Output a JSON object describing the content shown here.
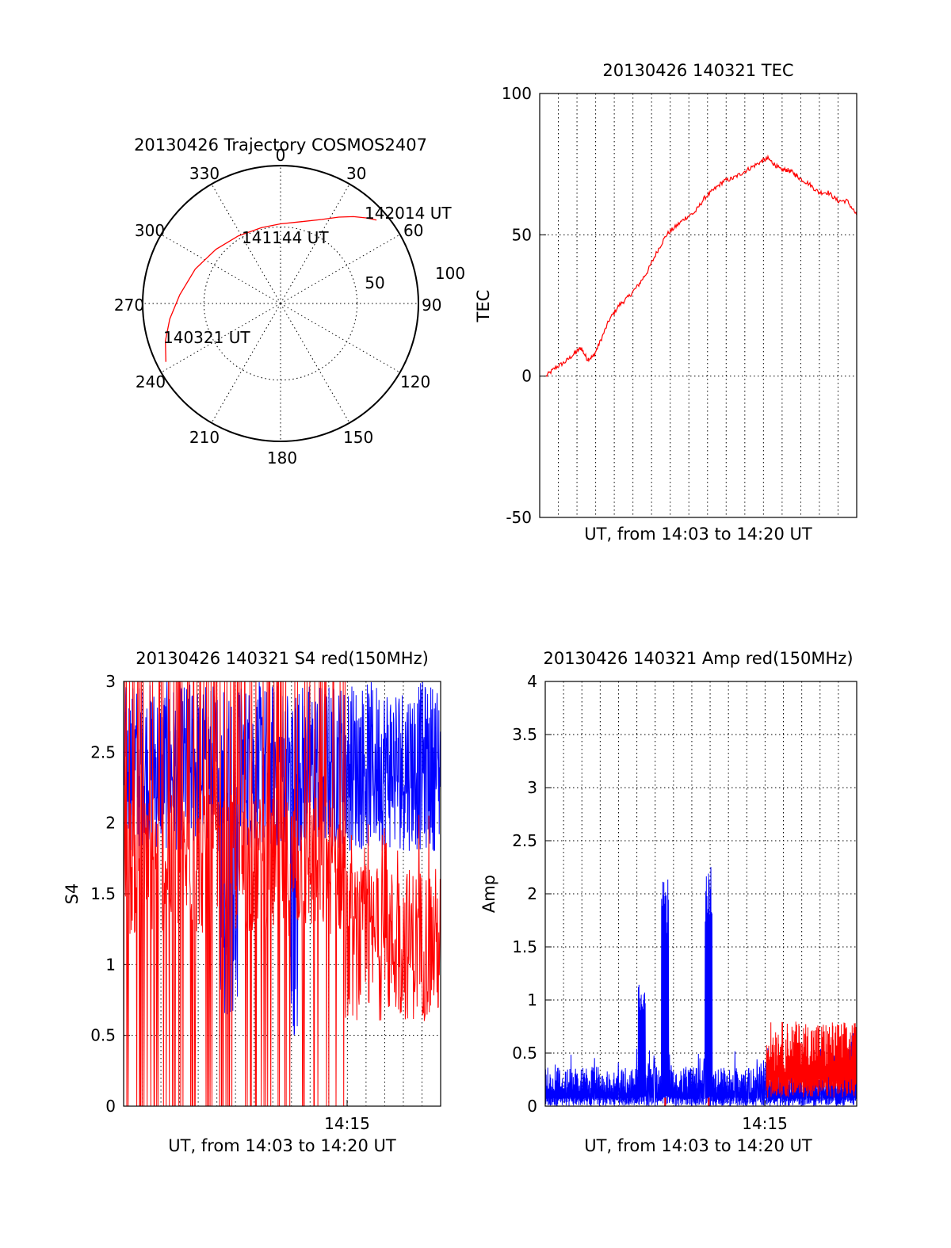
{
  "chart_data": [
    {
      "id": "trajectory",
      "type": "polar",
      "title": "20130426 Trajectory COSMOS2407",
      "azimuth_labels": [
        "0",
        "30",
        "60",
        "90",
        "120",
        "150",
        "180",
        "210",
        "240",
        "270",
        "300",
        "330"
      ],
      "radial_labels": [
        "50",
        "100"
      ],
      "grid": true,
      "series": [
        {
          "color": "#ff0000",
          "points": [
            {
              "az": 243,
              "el": 6
            },
            {
              "az": 252,
              "el": 11
            },
            {
              "az": 262,
              "el": 17
            },
            {
              "az": 275,
              "el": 24
            },
            {
              "az": 292,
              "el": 30
            },
            {
              "az": 310,
              "el": 35
            },
            {
              "az": 328,
              "el": 38
            },
            {
              "az": 346,
              "el": 39
            },
            {
              "az": 0,
              "el": 38
            },
            {
              "az": 14,
              "el": 35
            },
            {
              "az": 26,
              "el": 29
            },
            {
              "az": 34,
              "el": 22
            },
            {
              "az": 40,
              "el": 16
            },
            {
              "az": 45,
              "el": 11
            },
            {
              "az": 49,
              "el": 7
            }
          ]
        }
      ],
      "annotations": [
        {
          "text": "142014 UT",
          "az": 50,
          "el": 6
        },
        {
          "text": "141144 UT",
          "az": 15,
          "el": 52
        },
        {
          "text": "140321 UT",
          "az": 250,
          "el": 5
        }
      ]
    },
    {
      "id": "tec",
      "type": "line",
      "title": "20130426 140321 TEC",
      "xlabel": "UT, from 14:03 to 14:20 UT",
      "ylabel": "TEC",
      "xlim": [
        0,
        1
      ],
      "ylim": [
        -50,
        100
      ],
      "yticks": [
        "-50",
        "0",
        "50",
        "100"
      ],
      "grid": true,
      "series": [
        {
          "color": "#ff0000",
          "x": [
            0.02,
            0.05,
            0.08,
            0.11,
            0.13,
            0.15,
            0.17,
            0.19,
            0.22,
            0.25,
            0.28,
            0.31,
            0.34,
            0.37,
            0.4,
            0.43,
            0.46,
            0.49,
            0.52,
            0.55,
            0.58,
            0.61,
            0.64,
            0.67,
            0.7,
            0.72,
            0.74,
            0.76,
            0.78,
            0.8,
            0.82,
            0.85,
            0.88,
            0.91,
            0.94,
            0.97,
            1.0
          ],
          "values": [
            0,
            3,
            5,
            8,
            10,
            6,
            7,
            12,
            20,
            25,
            28,
            32,
            37,
            44,
            50,
            53,
            56,
            58,
            63,
            66,
            69,
            70,
            72,
            74,
            76,
            77,
            75,
            73,
            73,
            72,
            70,
            68,
            65,
            65,
            62,
            62,
            57
          ]
        }
      ]
    },
    {
      "id": "s4",
      "type": "line",
      "title": "20130426 140321 S4 red(150MHz)",
      "xlabel": "UT, from 14:03 to 14:20 UT",
      "ylabel": "S4",
      "xlim": [
        0,
        1
      ],
      "ylim": [
        0,
        3
      ],
      "yticks": [
        "0",
        "0.5",
        "1",
        "1.5",
        "2",
        "2.5",
        "3"
      ],
      "xticks": [
        {
          "x": 0.705,
          "label": "14:15"
        }
      ],
      "grid": true,
      "series": [
        {
          "color": "#0000ff",
          "type": "noise"
        },
        {
          "color": "#ff0000",
          "type": "noise"
        }
      ]
    },
    {
      "id": "amp",
      "type": "line",
      "title": "20130426 140321 Amp red(150MHz)",
      "xlabel": "UT, from 14:03 to 14:20 UT",
      "ylabel": "Amp",
      "xlim": [
        0,
        1
      ],
      "ylim": [
        0,
        4
      ],
      "yticks": [
        "0",
        "0.5",
        "1",
        "1.5",
        "2",
        "2.5",
        "3",
        "3.5",
        "4"
      ],
      "xticks": [
        {
          "x": 0.705,
          "label": "14:15"
        }
      ],
      "grid": true,
      "peaks": [
        {
          "x": 0.31,
          "value": 1.2
        },
        {
          "x": 0.385,
          "value": 2.15
        },
        {
          "x": 0.525,
          "value": 2.27
        }
      ],
      "series": [
        {
          "color": "#0000ff",
          "type": "noise"
        },
        {
          "color": "#ff0000",
          "type": "noise"
        }
      ]
    }
  ]
}
